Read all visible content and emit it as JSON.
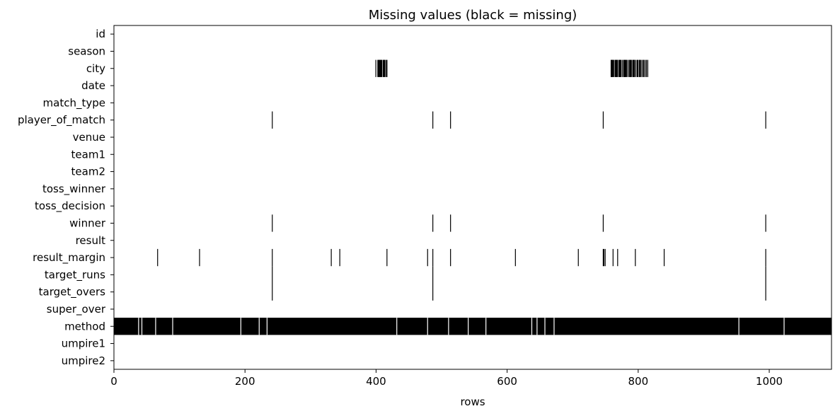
{
  "chart_data": {
    "type": "heatmap",
    "title": "Missing values (black = missing)",
    "xlabel": "rows",
    "ylabel": "",
    "xlim": [
      0,
      1095
    ],
    "x_ticks": [
      0,
      200,
      400,
      600,
      800,
      1000
    ],
    "legend": "black = missing",
    "colors": {
      "missing": "#000000",
      "present": "#ffffff"
    },
    "columns": [
      "id",
      "season",
      "city",
      "date",
      "match_type",
      "player_of_match",
      "venue",
      "team1",
      "team2",
      "toss_winner",
      "toss_decision",
      "winner",
      "result",
      "result_margin",
      "target_runs",
      "target_overs",
      "super_over",
      "method",
      "umpire1",
      "umpire2"
    ],
    "missing": {
      "id": [],
      "season": [],
      "city": [
        399,
        402,
        403,
        404,
        405,
        406,
        407,
        408,
        410,
        411,
        412,
        413,
        415,
        416,
        758,
        759,
        760,
        761,
        762,
        764,
        765,
        766,
        767,
        768,
        770,
        771,
        772,
        773,
        775,
        777,
        778,
        779,
        780,
        781,
        782,
        784,
        786,
        787,
        788,
        789,
        791,
        792,
        793,
        794,
        796,
        798,
        799,
        801,
        802,
        803,
        805,
        807,
        808,
        810,
        812,
        814
      ],
      "date": [],
      "match_type": [],
      "player_of_match": [
        241,
        486,
        513,
        746,
        994
      ],
      "venue": [],
      "team1": [],
      "team2": [],
      "toss_winner": [],
      "toss_decision": [],
      "winner": [
        241,
        486,
        513,
        746,
        994
      ],
      "result": [],
      "result_margin": [
        66,
        130,
        241,
        331,
        344,
        416,
        478,
        486,
        513,
        612,
        708,
        746,
        747,
        749,
        761,
        768,
        795,
        839,
        994
      ],
      "target_runs": [
        241,
        486,
        994
      ],
      "target_overs": [
        241,
        486,
        994
      ],
      "super_over": [],
      "method": [],
      "umpire1": [],
      "umpire2": []
    },
    "method_present_rows": [
      37,
      42,
      63,
      89,
      193,
      221,
      233,
      431,
      478,
      510,
      540,
      567,
      637,
      645,
      657,
      671,
      953,
      1022
    ]
  }
}
